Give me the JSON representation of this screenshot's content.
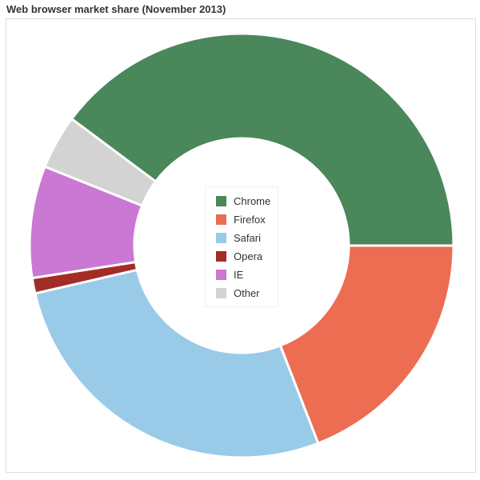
{
  "chart_data": {
    "type": "pie",
    "title": "Web browser market share (November 2013)",
    "donut": true,
    "legend_position": "center",
    "series": [
      {
        "name": "Chrome",
        "value": 40.6,
        "color": "#4a875a"
      },
      {
        "name": "Firefox",
        "value": 19.5,
        "color": "#ec6d52"
      },
      {
        "name": "Safari",
        "value": 27.8,
        "color": "#99cbe8"
      },
      {
        "name": "Opera",
        "value": 1.2,
        "color": "#a22d26"
      },
      {
        "name": "IE",
        "value": 8.7,
        "color": "#ca78d4"
      },
      {
        "name": "Other",
        "value": 4.2,
        "color": "#d3d3d3"
      }
    ]
  }
}
